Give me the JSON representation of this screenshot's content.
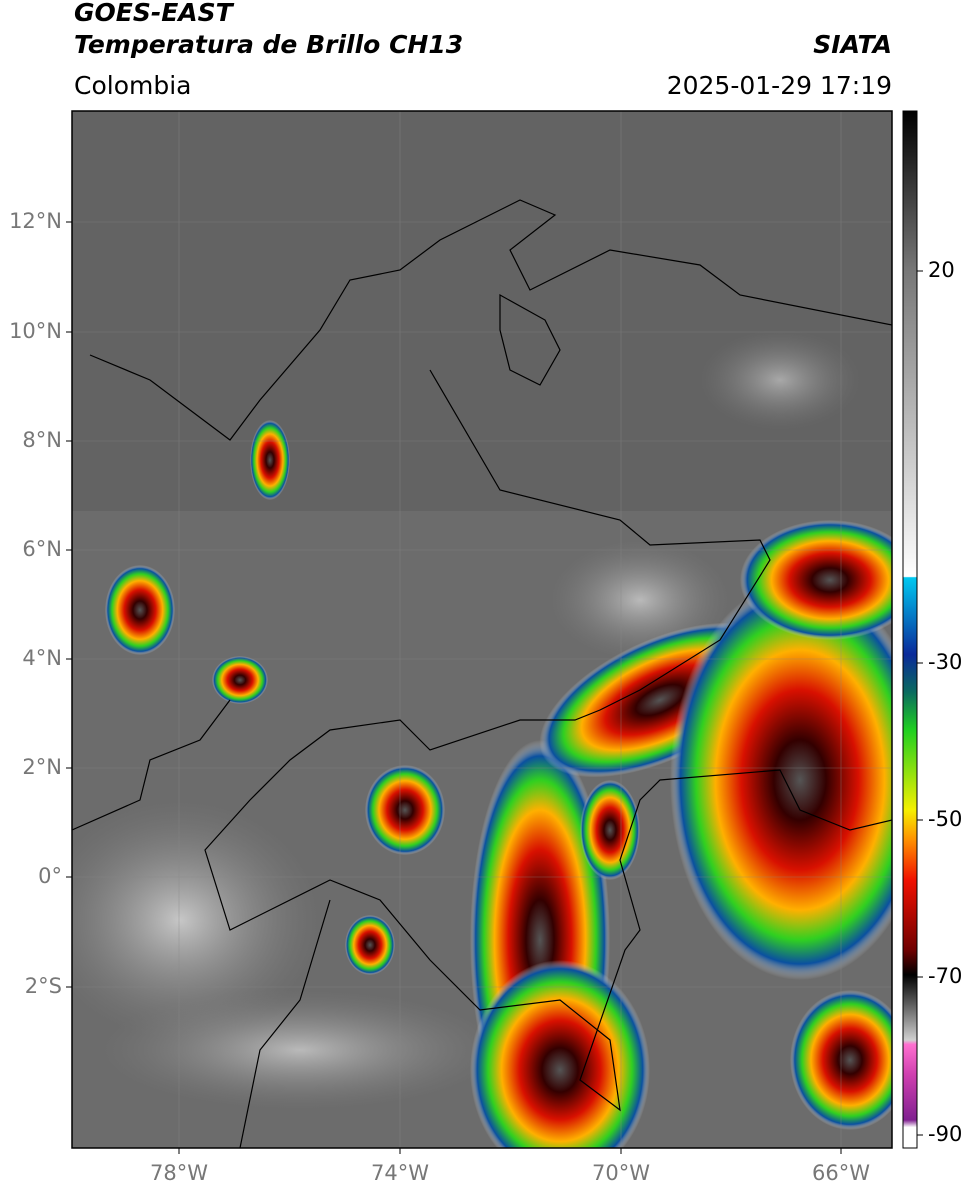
{
  "header": {
    "satellite": "GOES-EAST",
    "product": "Temperatura de Brillo CH13",
    "source": "SIATA",
    "region": "Colombia",
    "datetime": "2025-01-29 17:19"
  },
  "map": {
    "lat_labels": [
      "12°N",
      "10°N",
      "8°N",
      "6°N",
      "4°N",
      "2°N",
      "0°",
      "2°S"
    ],
    "lon_labels": [
      "78°W",
      "74°W",
      "70°W",
      "66°W"
    ]
  },
  "colorbar": {
    "ticks": [
      "20",
      "-30",
      "-50",
      "-70",
      "-90"
    ]
  }
}
